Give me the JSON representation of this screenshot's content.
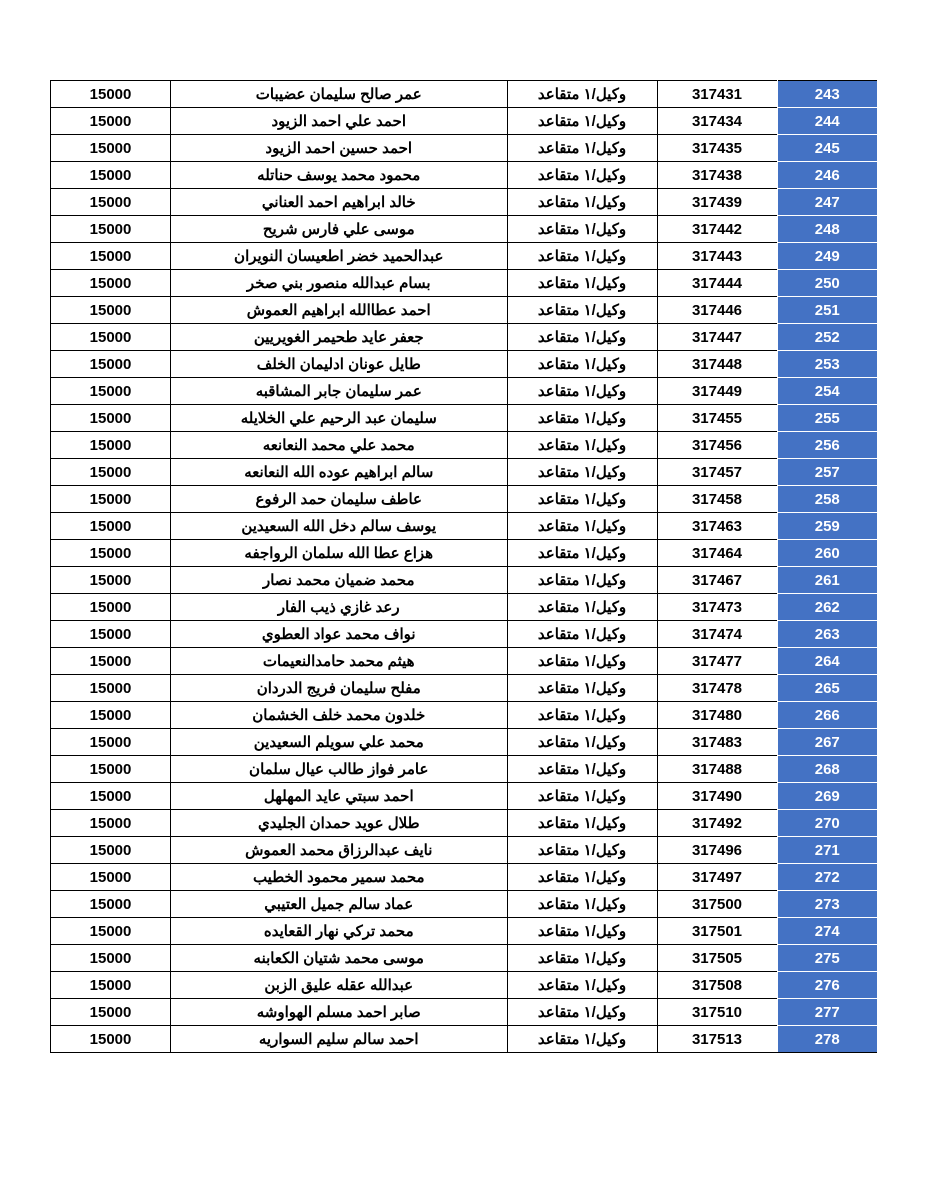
{
  "table": {
    "background_color": "#ffffff",
    "header_bg_color": "#4472c4",
    "header_text_color": "#ffffff",
    "border_color": "#000000",
    "font_weight": "bold",
    "columns": [
      "index",
      "id",
      "rank",
      "name",
      "amount"
    ],
    "rows": [
      {
        "index": "243",
        "id": "317431",
        "rank": "وكيل/١ متقاعد",
        "name": "عمر صالح سليمان عضيبات",
        "amount": "15000"
      },
      {
        "index": "244",
        "id": "317434",
        "rank": "وكيل/١ متقاعد",
        "name": "احمد علي احمد الزيود",
        "amount": "15000"
      },
      {
        "index": "245",
        "id": "317435",
        "rank": "وكيل/١ متقاعد",
        "name": "احمد حسين احمد الزيود",
        "amount": "15000"
      },
      {
        "index": "246",
        "id": "317438",
        "rank": "وكيل/١ متقاعد",
        "name": "محمود محمد يوسف حناتله",
        "amount": "15000"
      },
      {
        "index": "247",
        "id": "317439",
        "rank": "وكيل/١ متقاعد",
        "name": "خالد ابراهيم احمد العناني",
        "amount": "15000"
      },
      {
        "index": "248",
        "id": "317442",
        "rank": "وكيل/١ متقاعد",
        "name": "موسى علي فارس شريح",
        "amount": "15000"
      },
      {
        "index": "249",
        "id": "317443",
        "rank": "وكيل/١ متقاعد",
        "name": "عبدالحميد خضر اطعيسان النويران",
        "amount": "15000"
      },
      {
        "index": "250",
        "id": "317444",
        "rank": "وكيل/١ متقاعد",
        "name": "بسام عبدالله منصور بني صخر",
        "amount": "15000"
      },
      {
        "index": "251",
        "id": "317446",
        "rank": "وكيل/١ متقاعد",
        "name": "احمد عطاالله ابراهيم العموش",
        "amount": "15000"
      },
      {
        "index": "252",
        "id": "317447",
        "rank": "وكيل/١ متقاعد",
        "name": "جعفر عايد طحيمر الغويريين",
        "amount": "15000"
      },
      {
        "index": "253",
        "id": "317448",
        "rank": "وكيل/١ متقاعد",
        "name": "طايل عونان ادليمان الخلف",
        "amount": "15000"
      },
      {
        "index": "254",
        "id": "317449",
        "rank": "وكيل/١ متقاعد",
        "name": "عمر سليمان جابر المشاقبه",
        "amount": "15000"
      },
      {
        "index": "255",
        "id": "317455",
        "rank": "وكيل/١ متقاعد",
        "name": "سليمان عبد الرحيم علي الخلايله",
        "amount": "15000"
      },
      {
        "index": "256",
        "id": "317456",
        "rank": "وكيل/١ متقاعد",
        "name": "محمد علي محمد النعانعه",
        "amount": "15000"
      },
      {
        "index": "257",
        "id": "317457",
        "rank": "وكيل/١ متقاعد",
        "name": "سالم ابراهيم عوده الله النعانعه",
        "amount": "15000"
      },
      {
        "index": "258",
        "id": "317458",
        "rank": "وكيل/١ متقاعد",
        "name": "عاطف سليمان حمد الرفوع",
        "amount": "15000"
      },
      {
        "index": "259",
        "id": "317463",
        "rank": "وكيل/١ متقاعد",
        "name": "يوسف سالم دخل الله السعيدين",
        "amount": "15000"
      },
      {
        "index": "260",
        "id": "317464",
        "rank": "وكيل/١ متقاعد",
        "name": "هزاع عطا الله سلمان الرواجفه",
        "amount": "15000"
      },
      {
        "index": "261",
        "id": "317467",
        "rank": "وكيل/١ متقاعد",
        "name": "محمد ضميان محمد نصار",
        "amount": "15000"
      },
      {
        "index": "262",
        "id": "317473",
        "rank": "وكيل/١ متقاعد",
        "name": "رعد غازي ذيب الفار",
        "amount": "15000"
      },
      {
        "index": "263",
        "id": "317474",
        "rank": "وكيل/١ متقاعد",
        "name": "نواف محمد عواد العطوي",
        "amount": "15000"
      },
      {
        "index": "264",
        "id": "317477",
        "rank": "وكيل/١ متقاعد",
        "name": "هيثم محمد حامدالنعيمات",
        "amount": "15000"
      },
      {
        "index": "265",
        "id": "317478",
        "rank": "وكيل/١ متقاعد",
        "name": "مفلح سليمان فريج الدردان",
        "amount": "15000"
      },
      {
        "index": "266",
        "id": "317480",
        "rank": "وكيل/١ متقاعد",
        "name": "خلدون محمد خلف الخشمان",
        "amount": "15000"
      },
      {
        "index": "267",
        "id": "317483",
        "rank": "وكيل/١ متقاعد",
        "name": "محمد علي سويلم السعيدين",
        "amount": "15000"
      },
      {
        "index": "268",
        "id": "317488",
        "rank": "وكيل/١ متقاعد",
        "name": "عامر فواز طالب عيال سلمان",
        "amount": "15000"
      },
      {
        "index": "269",
        "id": "317490",
        "rank": "وكيل/١ متقاعد",
        "name": "احمد سبتي عايد المهلهل",
        "amount": "15000"
      },
      {
        "index": "270",
        "id": "317492",
        "rank": "وكيل/١ متقاعد",
        "name": "طلال عويد حمدان الجليدي",
        "amount": "15000"
      },
      {
        "index": "271",
        "id": "317496",
        "rank": "وكيل/١ متقاعد",
        "name": "نايف عبدالرزاق محمد العموش",
        "amount": "15000"
      },
      {
        "index": "272",
        "id": "317497",
        "rank": "وكيل/١ متقاعد",
        "name": "محمد سمير محمود الخطيب",
        "amount": "15000"
      },
      {
        "index": "273",
        "id": "317500",
        "rank": "وكيل/١ متقاعد",
        "name": "عماد سالم جميل العتيبي",
        "amount": "15000"
      },
      {
        "index": "274",
        "id": "317501",
        "rank": "وكيل/١ متقاعد",
        "name": "محمد تركي نهار القعايده",
        "amount": "15000"
      },
      {
        "index": "275",
        "id": "317505",
        "rank": "وكيل/١ متقاعد",
        "name": "موسى محمد شتيان الكعابنه",
        "amount": "15000"
      },
      {
        "index": "276",
        "id": "317508",
        "rank": "وكيل/١ متقاعد",
        "name": "عبدالله عقله عليق الزبن",
        "amount": "15000"
      },
      {
        "index": "277",
        "id": "317510",
        "rank": "وكيل/١ متقاعد",
        "name": "صابر احمد مسلم الهواوشه",
        "amount": "15000"
      },
      {
        "index": "278",
        "id": "317513",
        "rank": "وكيل/١ متقاعد",
        "name": "احمد سالم سليم السواريه",
        "amount": "15000"
      }
    ]
  }
}
